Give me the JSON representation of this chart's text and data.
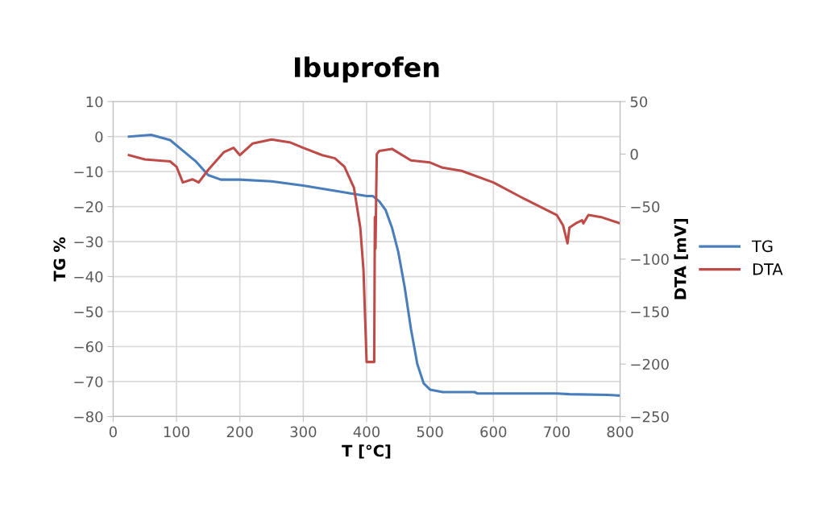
{
  "chart_data": {
    "type": "line",
    "title": "Ibuprofen",
    "xlabel": "T [°C]",
    "ylabel": "TG %",
    "y2label": "DTA [mV]",
    "xlim": [
      0,
      800
    ],
    "xticks": [
      0,
      100,
      200,
      300,
      400,
      500,
      600,
      700,
      800
    ],
    "ylim": [
      -80,
      10
    ],
    "yticks": [
      -80,
      -70,
      -60,
      -50,
      -40,
      -30,
      -20,
      -10,
      0,
      10
    ],
    "y2lim": [
      -250,
      50
    ],
    "y2ticks": [
      -250,
      -200,
      -150,
      -100,
      -50,
      0,
      50
    ],
    "grid": true,
    "legend": "right",
    "marker": "none",
    "line_style": "solid",
    "series": [
      {
        "name": "TG",
        "color": "#4a7ebb",
        "x": [
          25,
          60,
          90,
          110,
          130,
          150,
          170,
          200,
          250,
          300,
          350,
          400,
          410,
          420,
          430,
          440,
          450,
          460,
          470,
          480,
          490,
          500,
          520,
          570,
          575,
          700,
          720,
          780,
          800
        ],
        "values": [
          0,
          0.5,
          -1,
          -4,
          -7,
          -11,
          -12.3,
          -12.3,
          -12.8,
          -14,
          -15.5,
          -17,
          -17,
          -18.5,
          -21,
          -26,
          -33,
          -43,
          -55,
          -65,
          -70.5,
          -72.3,
          -73,
          -73,
          -73.4,
          -73.4,
          -73.6,
          -73.8,
          -74
        ]
      },
      {
        "name": "DTA",
        "color": "#be4b48",
        "axis": "y2",
        "x": [
          25,
          50,
          90,
          100,
          110,
          125,
          135,
          150,
          175,
          190,
          200,
          220,
          250,
          280,
          300,
          330,
          350,
          365,
          380,
          390,
          395,
          400,
          412,
          413,
          414,
          416,
          420,
          440,
          470,
          500,
          520,
          550,
          600,
          650,
          700,
          710,
          717,
          720,
          730,
          740,
          742,
          750,
          770,
          800
        ],
        "values": [
          -1,
          -5,
          -7,
          -12,
          -27,
          -24,
          -27,
          -15,
          2,
          6,
          -1,
          10,
          14,
          11,
          6,
          -1,
          -4,
          -12,
          -32,
          -70,
          -110,
          -198,
          -198,
          -60,
          -90,
          0,
          3,
          5,
          -6,
          -8,
          -13,
          -16,
          -27,
          -43,
          -58,
          -68,
          -85,
          -70,
          -66,
          -63,
          -66,
          -58,
          -60,
          -66
        ]
      }
    ]
  }
}
